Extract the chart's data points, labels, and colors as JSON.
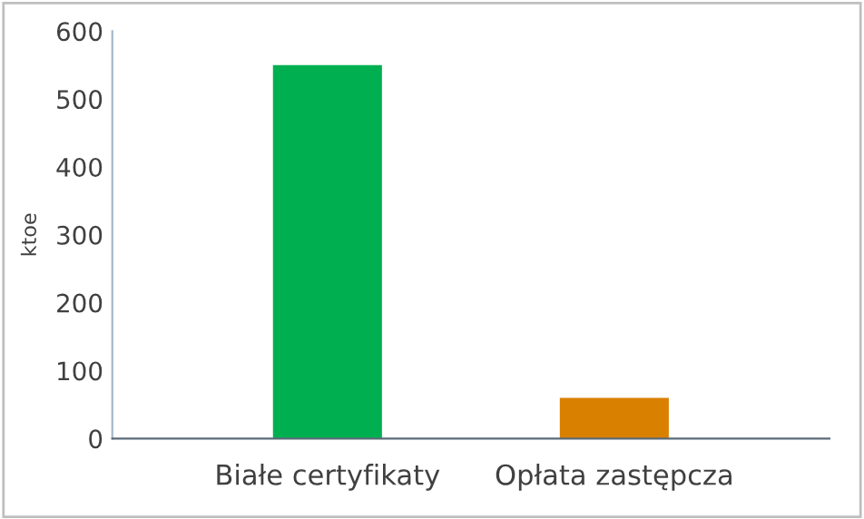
{
  "chart_data": {
    "type": "bar",
    "ylabel": "ktoe",
    "categories": [
      "Białe certyfikaty",
      "Opłata zastępcza"
    ],
    "values": [
      550,
      60
    ],
    "colors": [
      "#00b050",
      "#d98000"
    ],
    "ylim": [
      0,
      600
    ],
    "yticks": [
      0,
      100,
      200,
      300,
      400,
      500,
      600
    ],
    "grid": false
  }
}
